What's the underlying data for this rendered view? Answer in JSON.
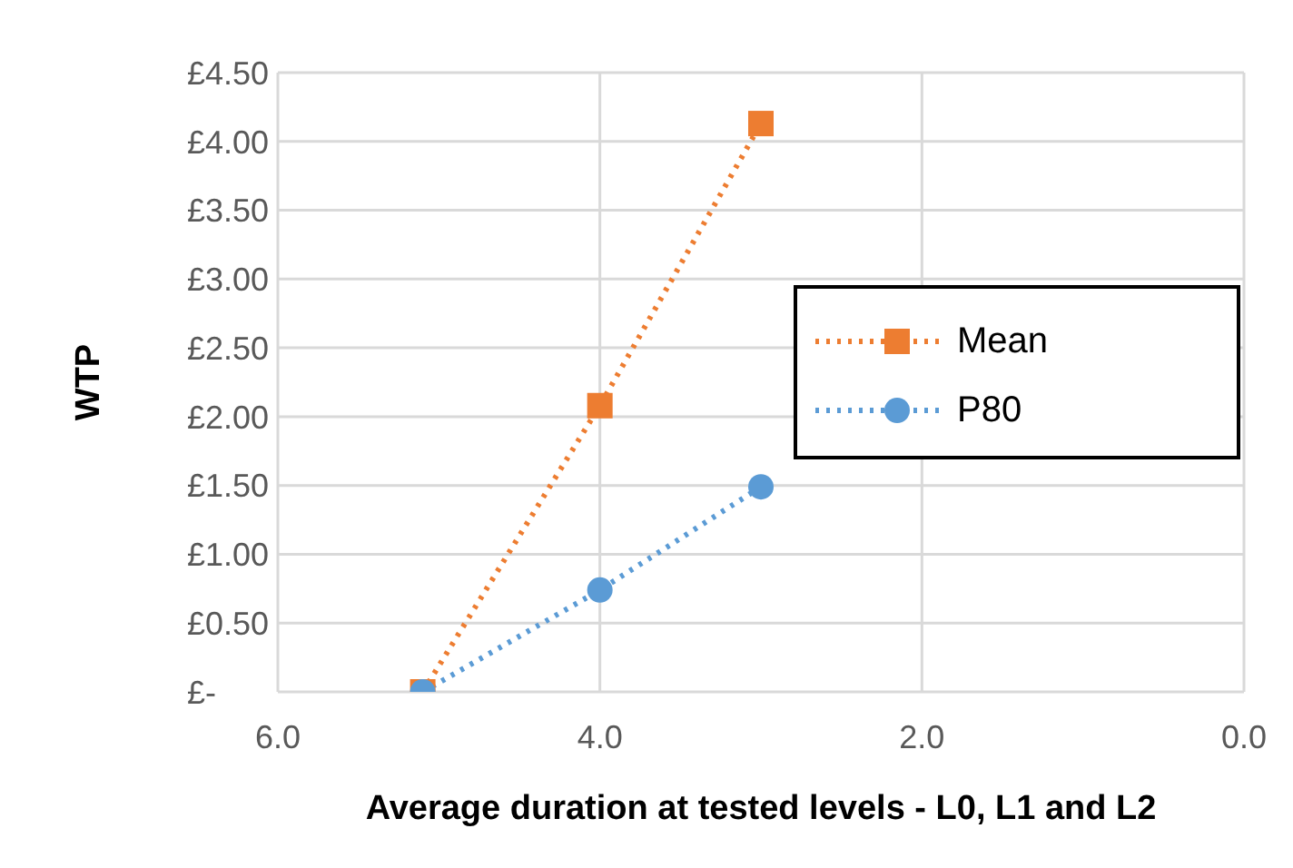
{
  "chart_data": {
    "type": "line",
    "xlabel": "Average duration at tested levels - L0, L1 and L2",
    "ylabel": "WTP",
    "x": [
      5.1,
      4.0,
      3.0
    ],
    "series": [
      {
        "name": "Mean",
        "color": "#ed7d31",
        "values": [
          0,
          2.08,
          4.13
        ],
        "marker": "square",
        "line_style": "dotted"
      },
      {
        "name": "P80",
        "color": "#5b9bd5",
        "values": [
          0,
          0.74,
          1.49
        ],
        "marker": "circle",
        "line_style": "dotted"
      }
    ],
    "xlim": [
      6,
      0
    ],
    "xticks": [
      {
        "value": 6,
        "label": "6.0"
      },
      {
        "value": 4,
        "label": "4.0"
      },
      {
        "value": 2,
        "label": "2.0"
      },
      {
        "value": 0,
        "label": "0.0"
      }
    ],
    "ylim": [
      0,
      4.5
    ],
    "yticks": [
      {
        "value": 0,
        "label": "£-"
      },
      {
        "value": 0.5,
        "label": "£0.50"
      },
      {
        "value": 1,
        "label": "£1.00"
      },
      {
        "value": 1.5,
        "label": "£1.50"
      },
      {
        "value": 2,
        "label": "£2.00"
      },
      {
        "value": 2.5,
        "label": "£2.50"
      },
      {
        "value": 3,
        "label": "£3.00"
      },
      {
        "value": 3.5,
        "label": "£3.50"
      },
      {
        "value": 4,
        "label": "£4.00"
      },
      {
        "value": 4.5,
        "label": "£4.50"
      }
    ],
    "grid": true,
    "legend": "right"
  }
}
